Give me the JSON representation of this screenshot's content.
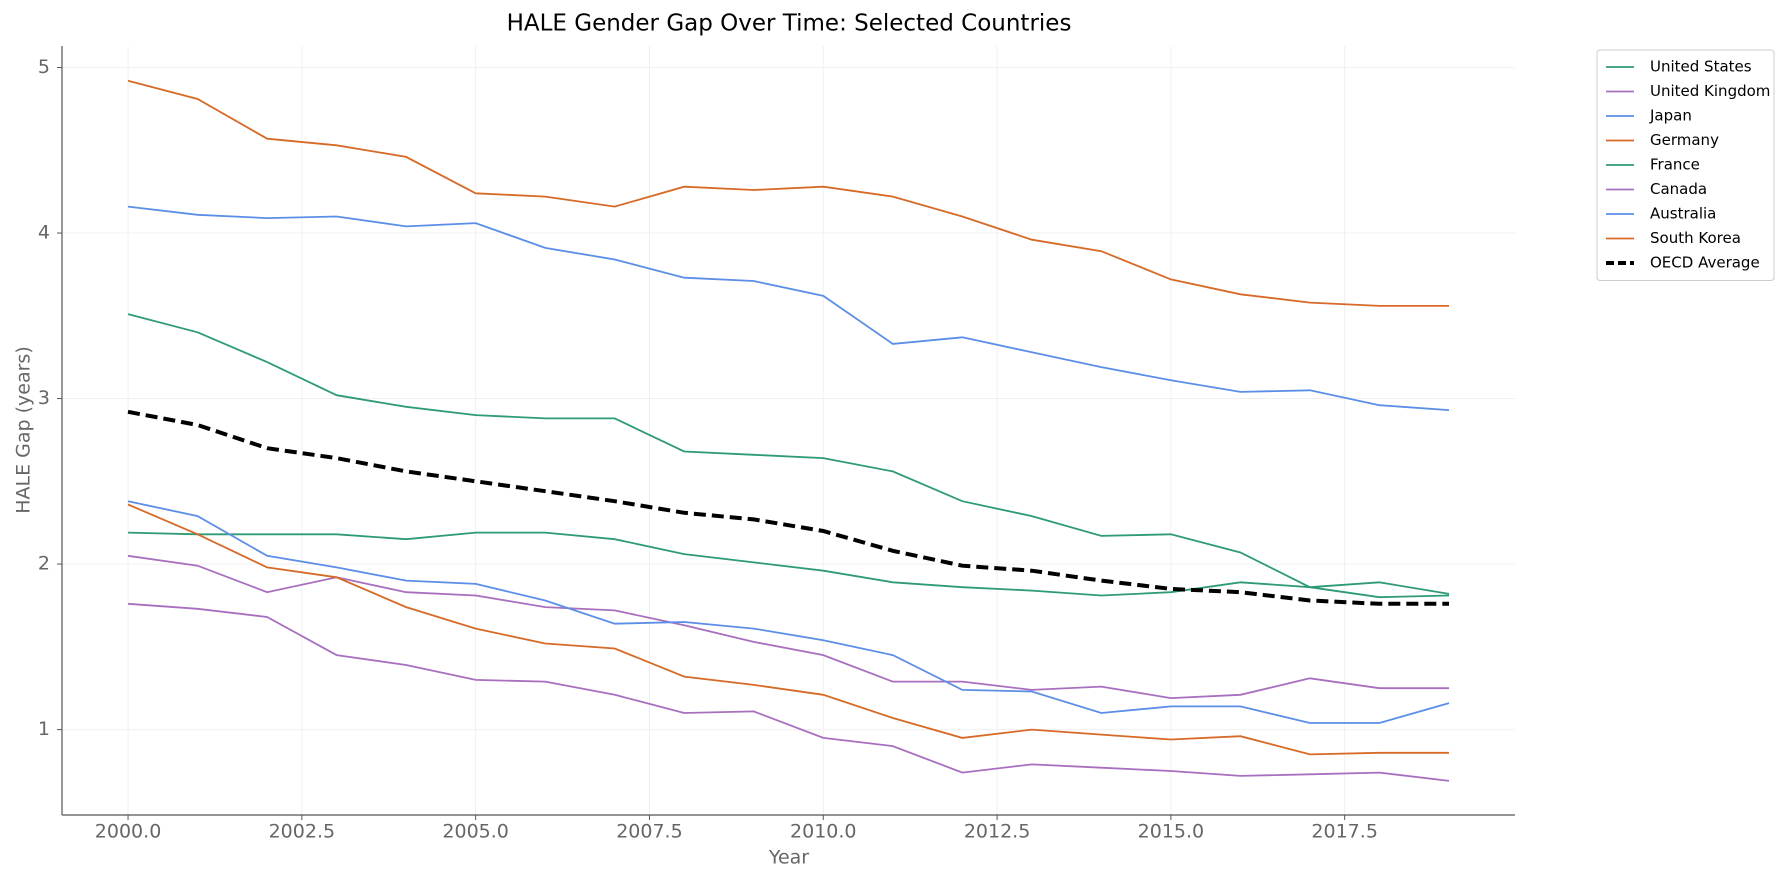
{
  "chart_data": {
    "type": "line",
    "title": "HALE Gender Gap Over Time: Selected Countries",
    "xlabel": "Year",
    "ylabel": "HALE Gap (years)",
    "x": [
      2000,
      2001,
      2002,
      2003,
      2004,
      2005,
      2006,
      2007,
      2008,
      2009,
      2010,
      2011,
      2012,
      2013,
      2014,
      2015,
      2016,
      2017,
      2018,
      2019
    ],
    "series": [
      {
        "name": "United States",
        "color": "#2e9a78",
        "values": [
          2.19,
          2.18,
          2.18,
          2.18,
          2.15,
          2.19,
          2.19,
          2.15,
          2.06,
          2.01,
          1.96,
          1.89,
          1.86,
          1.84,
          1.81,
          1.83,
          1.89,
          1.86,
          1.89,
          1.82
        ]
      },
      {
        "name": "United Kingdom",
        "color": "#a86fbf",
        "values": [
          2.05,
          1.99,
          1.83,
          1.92,
          1.83,
          1.81,
          1.74,
          1.72,
          1.63,
          1.53,
          1.45,
          1.29,
          1.29,
          1.24,
          1.26,
          1.19,
          1.21,
          1.31,
          1.25,
          1.25
        ]
      },
      {
        "name": "Japan",
        "color": "#5b8ee6",
        "values": [
          4.16,
          4.11,
          4.09,
          4.1,
          4.04,
          4.06,
          3.91,
          3.84,
          3.73,
          3.71,
          3.62,
          3.33,
          3.37,
          3.28,
          3.19,
          3.11,
          3.04,
          3.05,
          2.96,
          2.93
        ]
      },
      {
        "name": "Germany",
        "color": "#d66a26",
        "values": [
          4.92,
          4.81,
          4.57,
          4.53,
          4.46,
          4.24,
          4.22,
          4.16,
          4.28,
          4.26,
          4.28,
          4.22,
          4.1,
          3.96,
          3.89,
          3.72,
          3.63,
          3.58,
          3.56,
          3.56
        ]
      },
      {
        "name": "France",
        "color": "#2e9a78",
        "values": [
          3.51,
          3.4,
          3.22,
          3.02,
          2.95,
          2.9,
          2.88,
          2.88,
          2.68,
          2.66,
          2.64,
          2.56,
          2.38,
          2.29,
          2.17,
          2.18,
          2.07,
          1.86,
          1.8,
          1.81
        ]
      },
      {
        "name": "Canada",
        "color": "#a86fbf",
        "values": [
          1.76,
          1.73,
          1.68,
          1.45,
          1.39,
          1.3,
          1.29,
          1.21,
          1.1,
          1.11,
          0.95,
          0.9,
          0.74,
          0.79,
          0.77,
          0.75,
          0.72,
          0.73,
          0.74,
          0.69
        ]
      },
      {
        "name": "Australia",
        "color": "#5b8ee6",
        "values": [
          2.38,
          2.29,
          2.05,
          1.98,
          1.9,
          1.88,
          1.78,
          1.64,
          1.65,
          1.61,
          1.54,
          1.45,
          1.24,
          1.23,
          1.1,
          1.14,
          1.14,
          1.04,
          1.04,
          1.16
        ]
      },
      {
        "name": "South Korea",
        "color": "#d66a26",
        "values": [
          2.36,
          2.18,
          1.98,
          1.92,
          1.74,
          1.61,
          1.52,
          1.49,
          1.32,
          1.27,
          1.21,
          1.07,
          0.95,
          1.0,
          0.97,
          0.94,
          0.96,
          0.85,
          0.86,
          0.86
        ]
      },
      {
        "name": "OECD Average",
        "color": "#000000",
        "linestyle": "dashed",
        "values": [
          2.92,
          2.84,
          2.7,
          2.64,
          2.56,
          2.5,
          2.44,
          2.38,
          2.31,
          2.27,
          2.2,
          2.08,
          1.99,
          1.96,
          1.9,
          1.85,
          1.83,
          1.78,
          1.76,
          1.76
        ]
      }
    ],
    "xlim": [
      1999.05,
      2019.95
    ],
    "xticks": [
      {
        "value": 2000,
        "label": "2000.0"
      },
      {
        "value": 2002.5,
        "label": "2002.5"
      },
      {
        "value": 2005,
        "label": "2005.0"
      },
      {
        "value": 2007.5,
        "label": "2007.5"
      },
      {
        "value": 2010,
        "label": "2010.0"
      },
      {
        "value": 2012.5,
        "label": "2012.5"
      },
      {
        "value": 2015,
        "label": "2015.0"
      },
      {
        "value": 2017.5,
        "label": "2017.5"
      }
    ],
    "ylim": [
      0.484,
      5.13
    ],
    "yticks": [
      1,
      2,
      3,
      4,
      5
    ],
    "grid": true,
    "legend": "outside-upper-right"
  }
}
